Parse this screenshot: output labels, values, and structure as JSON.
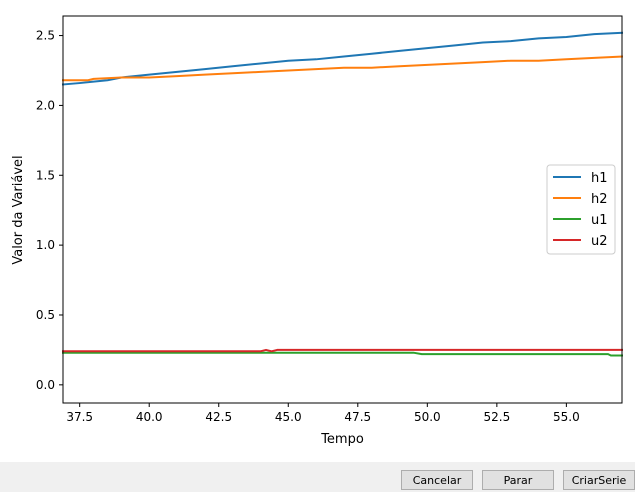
{
  "chart_data": {
    "type": "line",
    "xlabel": "Tempo",
    "ylabel": "Valor da Variável",
    "xlim": [
      36.9,
      57.0
    ],
    "ylim": [
      -0.13,
      2.64
    ],
    "xticks": [
      37.5,
      40.0,
      42.5,
      45.0,
      47.5,
      50.0,
      52.5,
      55.0
    ],
    "xtick_labels": [
      "37.5",
      "40.0",
      "42.5",
      "45.0",
      "47.5",
      "50.0",
      "52.5",
      "55.0"
    ],
    "yticks": [
      0.0,
      0.5,
      1.0,
      1.5,
      2.0,
      2.5
    ],
    "ytick_labels": [
      "0.0",
      "0.5",
      "1.0",
      "1.5",
      "2.0",
      "2.5"
    ],
    "grid": false,
    "legend_position": "center-right",
    "series": [
      {
        "name": "h1",
        "color": "#1f77b4",
        "x": [
          36.9,
          37.5,
          38.0,
          38.5,
          39.0,
          40.0,
          41.0,
          42.0,
          43.0,
          44.0,
          45.0,
          46.0,
          47.0,
          48.0,
          49.0,
          50.0,
          51.0,
          52.0,
          53.0,
          54.0,
          55.0,
          56.0,
          57.0
        ],
        "y": [
          2.15,
          2.16,
          2.17,
          2.18,
          2.2,
          2.22,
          2.24,
          2.26,
          2.28,
          2.3,
          2.32,
          2.33,
          2.35,
          2.37,
          2.39,
          2.41,
          2.43,
          2.45,
          2.46,
          2.48,
          2.49,
          2.51,
          2.52
        ]
      },
      {
        "name": "h2",
        "color": "#ff7f0e",
        "x": [
          36.9,
          37.8,
          38.0,
          39.0,
          40.0,
          41.0,
          42.0,
          43.0,
          44.0,
          45.0,
          46.0,
          47.0,
          48.0,
          49.0,
          50.0,
          51.0,
          52.0,
          53.0,
          54.0,
          55.0,
          56.0,
          57.0
        ],
        "y": [
          2.18,
          2.18,
          2.19,
          2.2,
          2.2,
          2.21,
          2.22,
          2.23,
          2.24,
          2.25,
          2.26,
          2.27,
          2.27,
          2.28,
          2.29,
          2.3,
          2.31,
          2.32,
          2.32,
          2.33,
          2.34,
          2.35
        ]
      },
      {
        "name": "u1",
        "color": "#2ca02c",
        "x": [
          36.9,
          44.0,
          49.5,
          49.8,
          56.5,
          56.6,
          57.0
        ],
        "y": [
          0.23,
          0.23,
          0.23,
          0.22,
          0.22,
          0.21,
          0.21
        ]
      },
      {
        "name": "u2",
        "color": "#d62728",
        "x": [
          36.9,
          44.0,
          44.2,
          44.4,
          44.6,
          57.0
        ],
        "y": [
          0.24,
          0.24,
          0.25,
          0.24,
          0.25,
          0.25
        ]
      }
    ]
  },
  "buttons": {
    "cancel": "Cancelar",
    "stop": "Parar",
    "create_series": "CriarSerie"
  }
}
